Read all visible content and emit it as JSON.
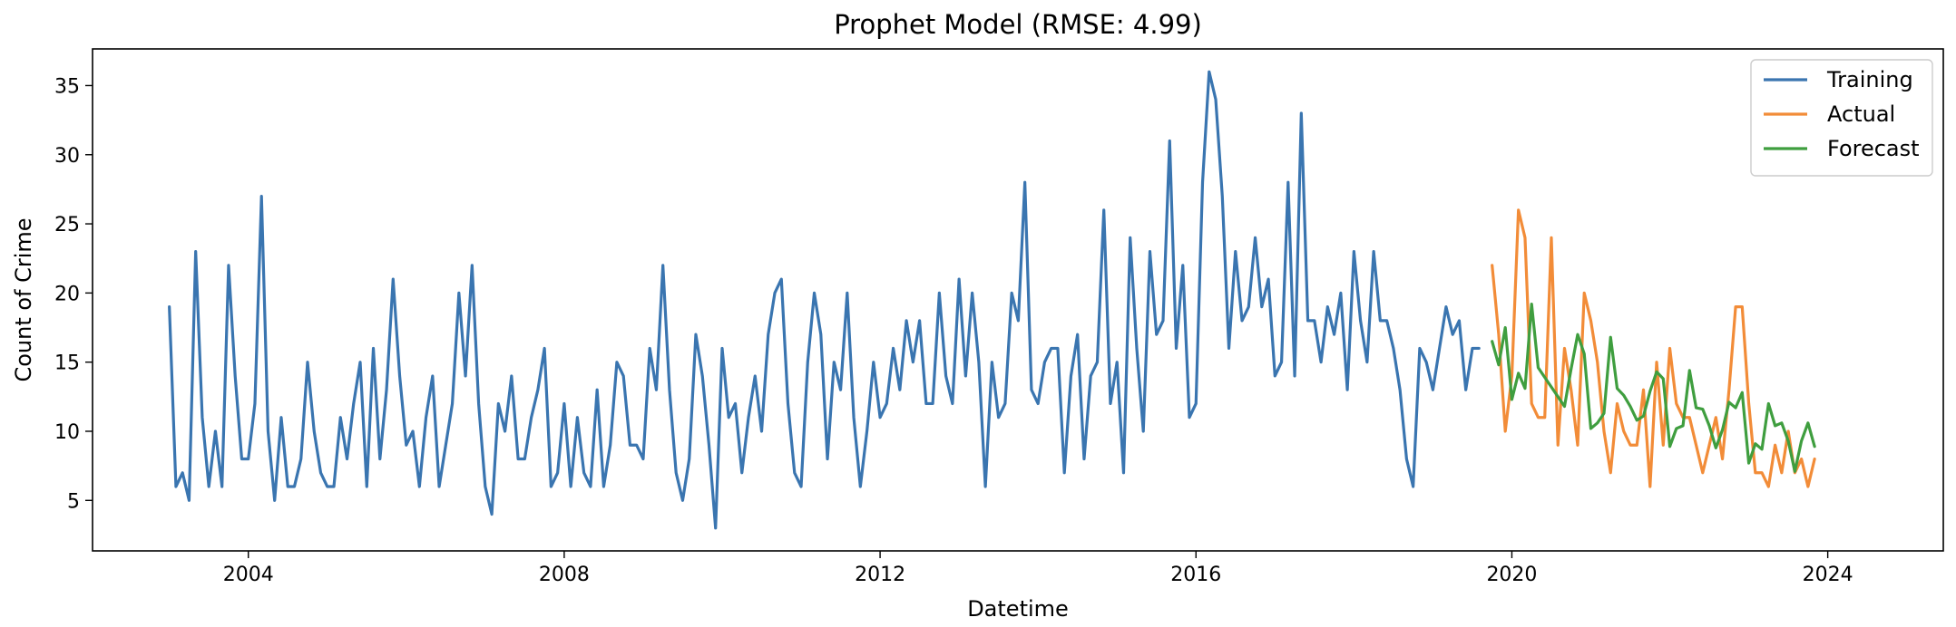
{
  "chart_data": {
    "type": "line",
    "title": "Prophet Model (RMSE: 4.99)",
    "xlabel": "Datetime",
    "ylabel": "Count of Crime",
    "xlim": [
      "2002-01-11",
      "2025-06-18"
    ],
    "ylim": [
      1.35,
      37.65
    ],
    "x_ticks": [
      "2004",
      "2008",
      "2012",
      "2016",
      "2020",
      "2024"
    ],
    "y_ticks": [
      "5",
      "10",
      "15",
      "20",
      "25",
      "30",
      "35"
    ],
    "grid": false,
    "legend_position": "upper right",
    "series": [
      {
        "name": "Training",
        "color": "#3a75b0",
        "start": "2003-01",
        "values": [
          19,
          6,
          7,
          5,
          23,
          11,
          6,
          10,
          6,
          22,
          14,
          8,
          8,
          12,
          27,
          10,
          5,
          11,
          6,
          6,
          8,
          15,
          10,
          7,
          6,
          6,
          11,
          8,
          12,
          15,
          6,
          16,
          8,
          13,
          21,
          14,
          9,
          10,
          6,
          11,
          14,
          6,
          9,
          12,
          20,
          14,
          22,
          12,
          6,
          4,
          12,
          10,
          14,
          8,
          8,
          11,
          13,
          16,
          6,
          7,
          12,
          6,
          11,
          7,
          6,
          13,
          6,
          9,
          15,
          14,
          9,
          9,
          8,
          16,
          13,
          22,
          13,
          7,
          5,
          8,
          17,
          14,
          9,
          3,
          16,
          11,
          12,
          7,
          11,
          14,
          10,
          17,
          20,
          21,
          12,
          7,
          6,
          15,
          20,
          17,
          8,
          15,
          13,
          20,
          11,
          6,
          10,
          15,
          11,
          12,
          16,
          13,
          18,
          15,
          18,
          12,
          12,
          20,
          14,
          12,
          21,
          14,
          20,
          15,
          6,
          15,
          11,
          12,
          20,
          18,
          28,
          13,
          12,
          15,
          16,
          16,
          7,
          14,
          17,
          8,
          14,
          15,
          26,
          12,
          15,
          7,
          24,
          16,
          10,
          23,
          17,
          18,
          31,
          16,
          22,
          11,
          12,
          28,
          36,
          34,
          27,
          16,
          23,
          18,
          19,
          24,
          19,
          21,
          14,
          15,
          28,
          14,
          33,
          18,
          18,
          15,
          19,
          17,
          20,
          13,
          23,
          18,
          15,
          23,
          18,
          18,
          16,
          13,
          8,
          6,
          16,
          15,
          13,
          16,
          19,
          17,
          18,
          13,
          16,
          16
        ]
      },
      {
        "name": "Actual",
        "color": "#f28c38",
        "start": "2019-10",
        "values": [
          22,
          17,
          10,
          14,
          26,
          24,
          12,
          11,
          11,
          24,
          9,
          16,
          13,
          9,
          20,
          18,
          15,
          10,
          7,
          12,
          10,
          9,
          9,
          13,
          6,
          15,
          9,
          16,
          12,
          11,
          11,
          9,
          7,
          9,
          11,
          8,
          13,
          19,
          19,
          12,
          7,
          7,
          6,
          9,
          7,
          10,
          7,
          8,
          6,
          8
        ]
      },
      {
        "name": "Forecast",
        "color": "#3f9e3f",
        "start": "2019-10",
        "values": [
          16.5,
          14.8,
          17.5,
          12.3,
          14.2,
          13.1,
          19.2,
          14.6,
          13.9,
          13.2,
          12.5,
          11.8,
          14.5,
          17.0,
          15.6,
          10.2,
          10.6,
          11.3,
          16.8,
          13.1,
          12.6,
          11.8,
          10.8,
          11.1,
          12.9,
          14.3,
          13.8,
          8.9,
          10.2,
          10.4,
          14.4,
          11.7,
          11.6,
          10.4,
          8.8,
          10.1,
          12.1,
          11.7,
          12.8,
          7.7,
          9.1,
          8.7,
          12.0,
          10.4,
          10.6,
          9.3,
          7.1,
          9.3,
          10.6,
          8.9
        ]
      }
    ]
  }
}
